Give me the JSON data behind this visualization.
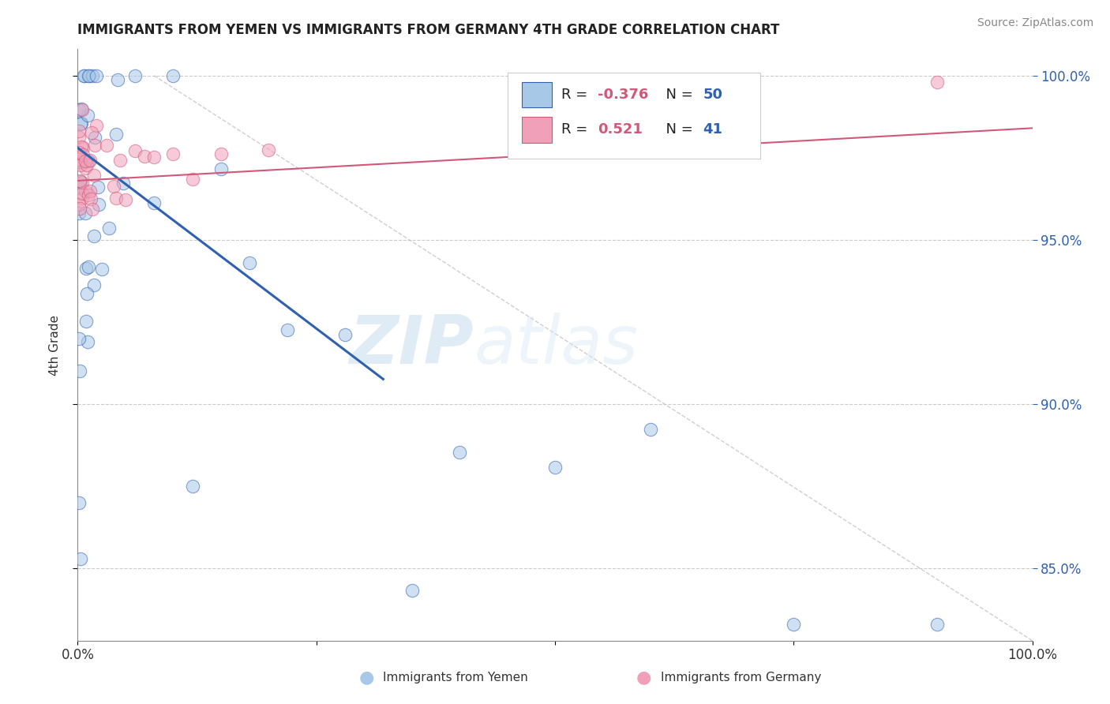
{
  "title": "IMMIGRANTS FROM YEMEN VS IMMIGRANTS FROM GERMANY 4TH GRADE CORRELATION CHART",
  "source": "Source: ZipAtlas.com",
  "label_yemen": "Immigrants from Yemen",
  "label_germany": "Immigrants from Germany",
  "ylabel": "4th Grade",
  "R_yemen": -0.376,
  "N_yemen": 50,
  "R_germany": 0.521,
  "N_germany": 41,
  "color_yemen": "#A8C8E8",
  "color_germany": "#F0A0B8",
  "trend_yemen_color": "#3060B0",
  "trend_germany_color": "#D05878",
  "xmin": 0.0,
  "xmax": 1.0,
  "ymin": 0.828,
  "ymax": 1.008,
  "yticks": [
    0.85,
    0.9,
    0.95,
    1.0
  ],
  "ytick_labels": [
    "85.0%",
    "90.0%",
    "95.0%",
    "100.0%"
  ],
  "watermark_zip": "ZIP",
  "watermark_atlas": "atlas",
  "background_color": "#ffffff",
  "grid_color": "#cccccc",
  "diag_color": "#bbbbbb",
  "legend_R_color": "#D05878",
  "legend_N_color": "#3060B0"
}
